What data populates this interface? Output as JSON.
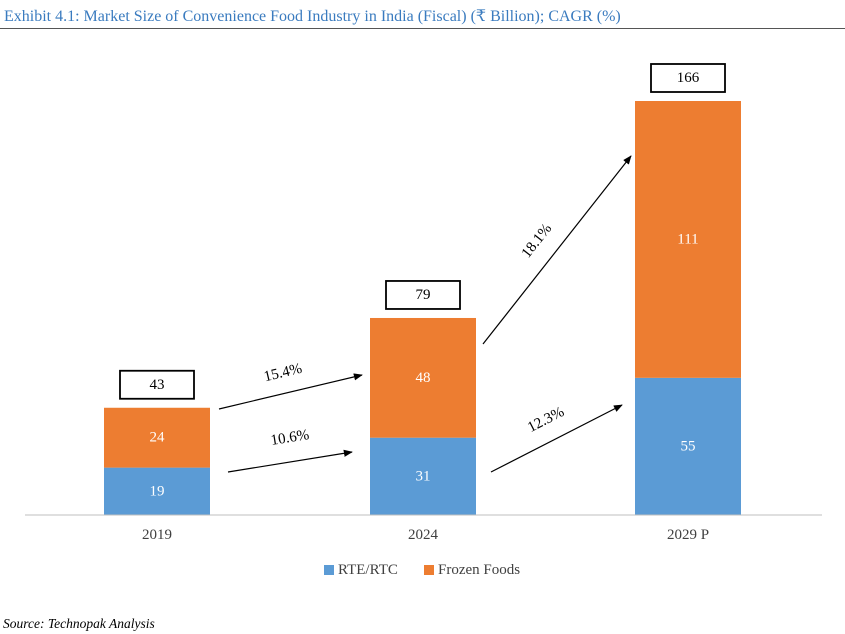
{
  "title": "Exhibit 4.1: Market Size of Convenience Food Industry in India (Fiscal) (₹ Billion); CAGR (%)",
  "source": "Source: Technopak Analysis",
  "colors": {
    "title": "#3a7bbf",
    "rte": "#5b9bd5",
    "frozen": "#ed7d31"
  },
  "chart_data": {
    "type": "bar",
    "stacked": true,
    "categories": [
      "2019",
      "2024",
      "2029 P"
    ],
    "series": [
      {
        "name": "RTE/RTC",
        "values": [
          19,
          31,
          55
        ]
      },
      {
        "name": "Frozen Foods",
        "values": [
          24,
          48,
          111
        ]
      }
    ],
    "totals": [
      "43",
      "79",
      "166"
    ],
    "value_labels": {
      "RTE/RTC": [
        "19",
        "31",
        "55"
      ],
      "Frozen Foods": [
        "24",
        "48",
        "111"
      ]
    },
    "cagr": [
      {
        "series": "Frozen Foods",
        "from": "2019",
        "to": "2024",
        "label": "15.4%"
      },
      {
        "series": "RTE/RTC",
        "from": "2019",
        "to": "2024",
        "label": "10.6%"
      },
      {
        "series": "Frozen Foods",
        "from": "2024",
        "to": "2029 P",
        "label": "18.1%"
      },
      {
        "series": "RTE/RTC",
        "from": "2024",
        "to": "2029 P",
        "label": "12.3%"
      }
    ],
    "legend": [
      "RTE/RTC",
      "Frozen Foods"
    ],
    "legend_position": "bottom",
    "ylim": [
      0,
      166
    ],
    "grid": false
  }
}
